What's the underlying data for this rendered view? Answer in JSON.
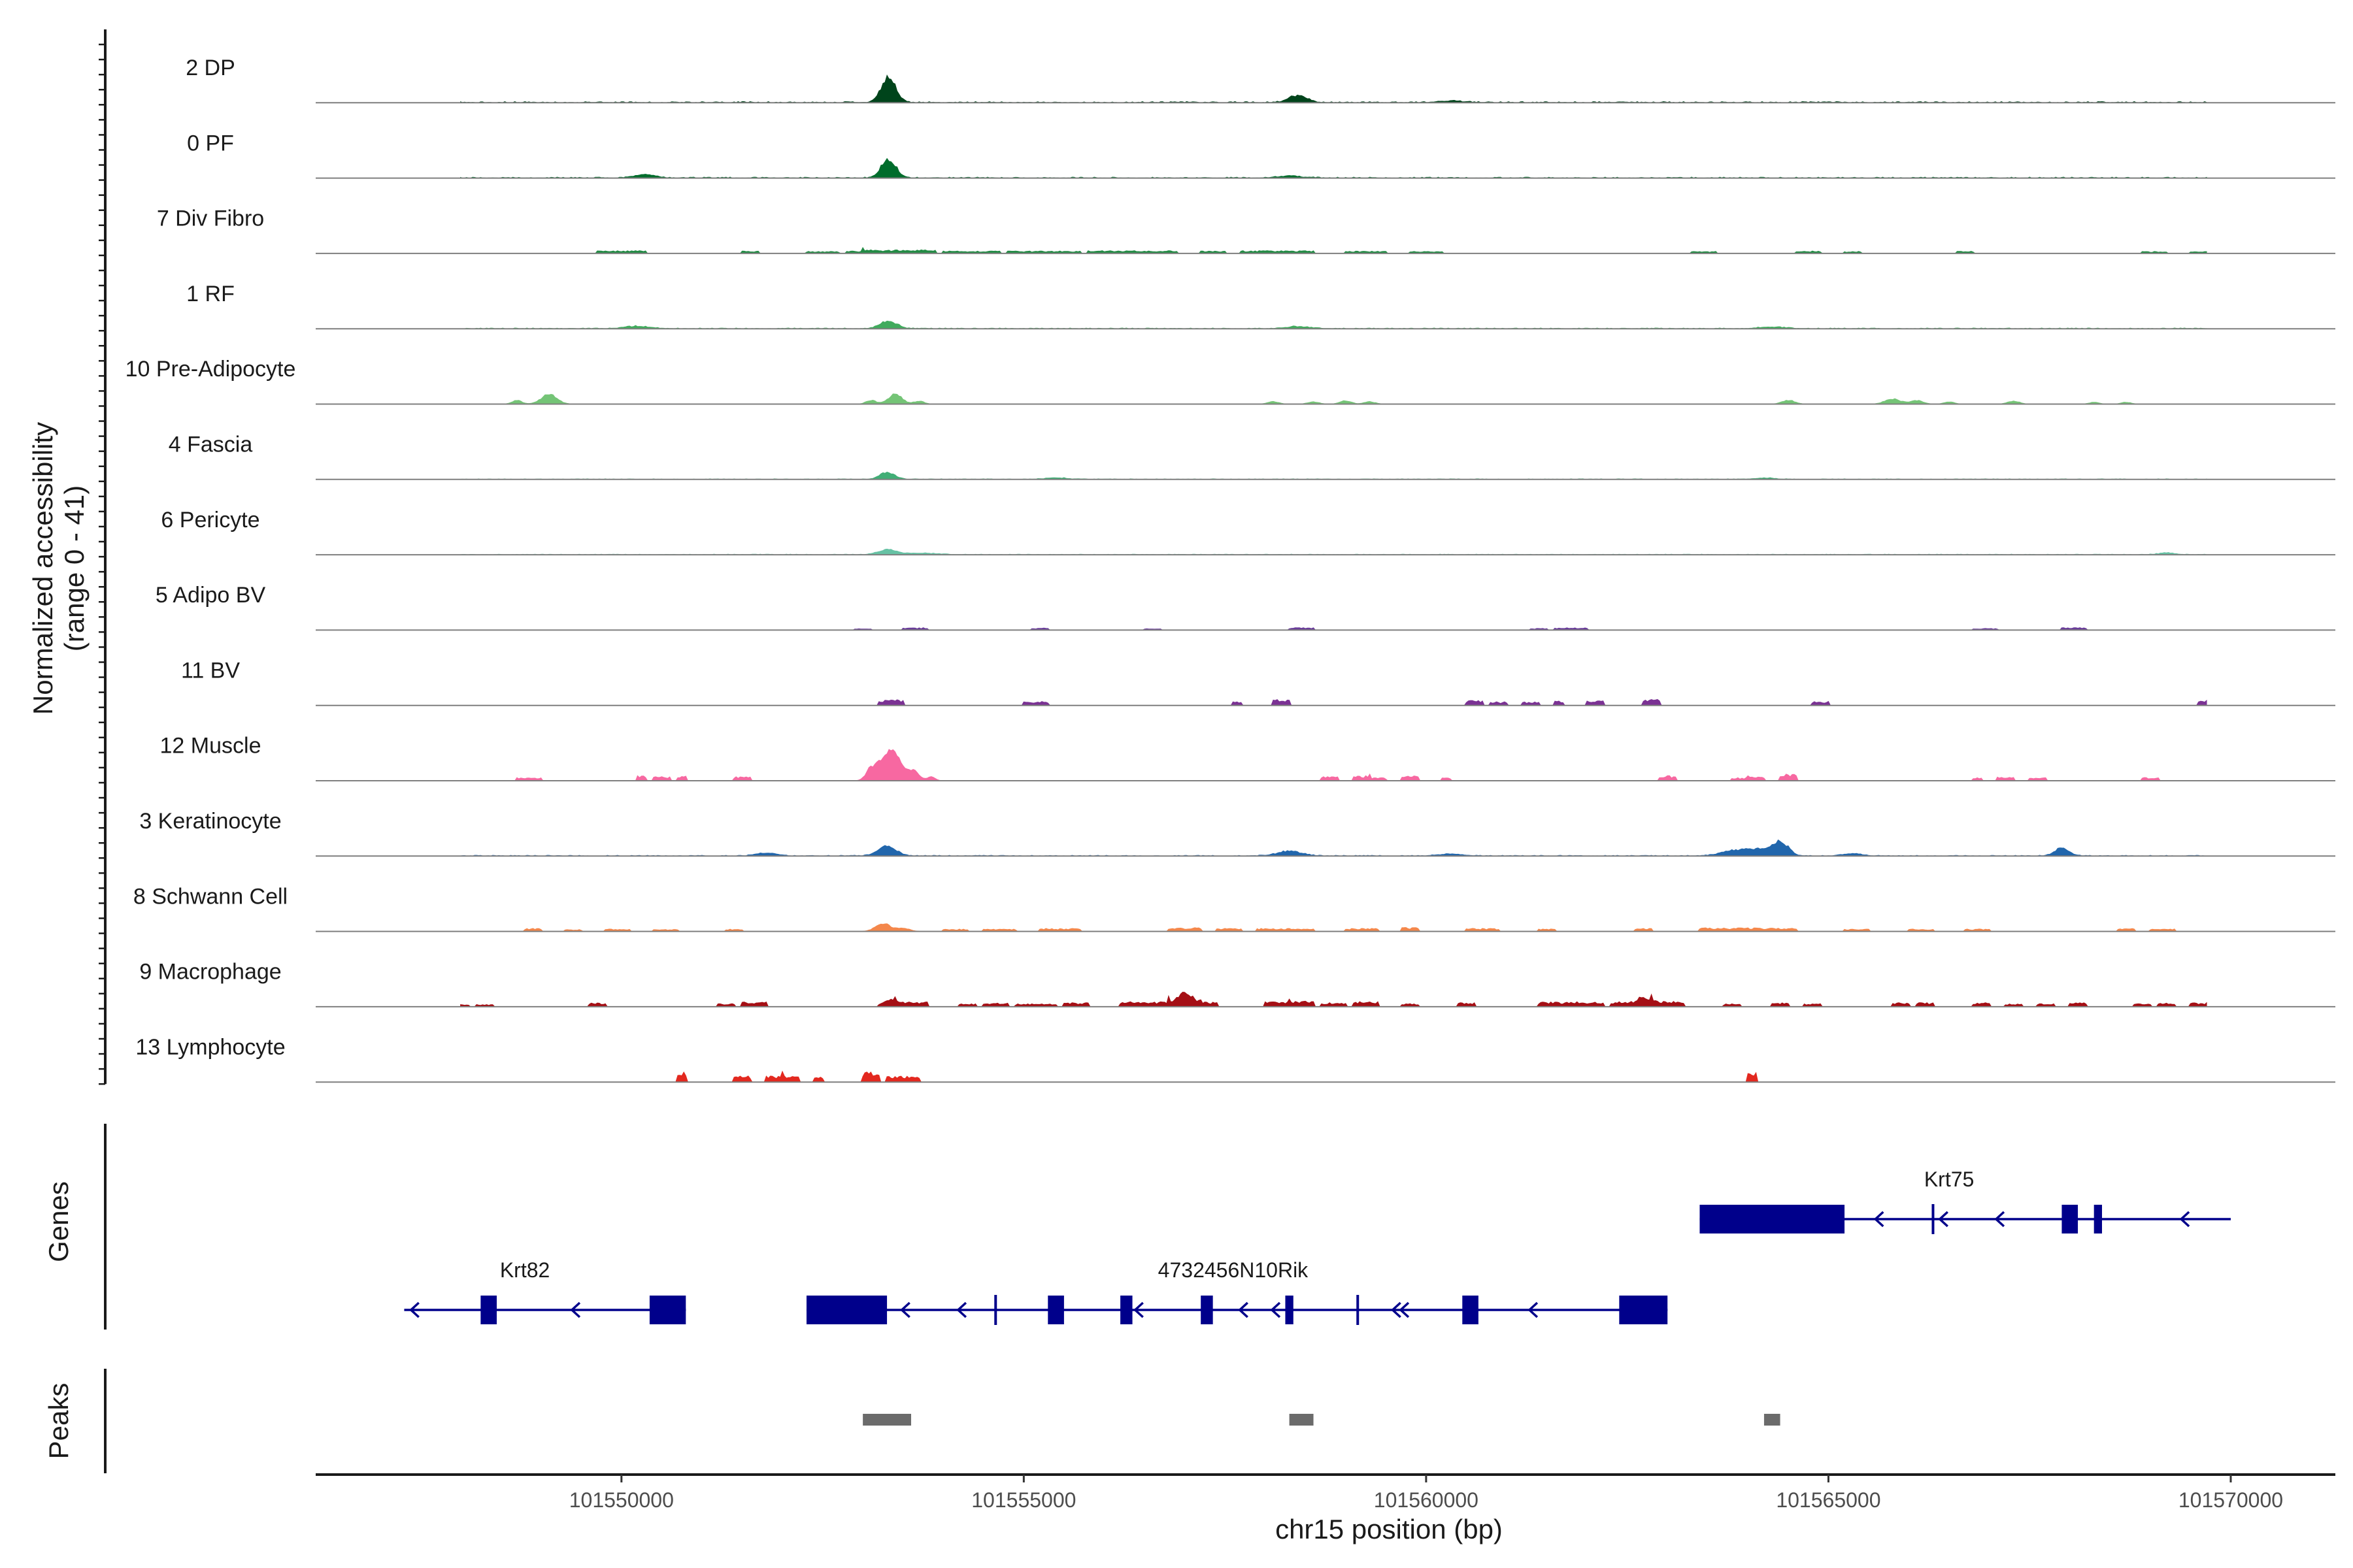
{
  "chart_data": {
    "type": "area",
    "title": "",
    "chromosome": "chr15",
    "xlabel": "chr15 position (bp)",
    "ylabel_line1": "Normalized accessibility",
    "ylabel_line2": "(range 0 - 41)",
    "xlim": [
      101546200,
      101571300
    ],
    "ylim": [
      0,
      41
    ],
    "x_ticks": [
      101550000,
      101555000,
      101560000,
      101565000,
      101570000
    ],
    "x_tick_labels": [
      "101550000",
      "101555000",
      "101560000",
      "101565000",
      "101570000"
    ],
    "genes_label": "Genes",
    "peaks_label": "Peaks",
    "series": [
      {
        "name": "2 DP",
        "color": "#00441b",
        "base": 0.6,
        "noise": 0.35,
        "peaks": [
          [
            101553320,
            16,
            90
          ],
          [
            101558400,
            4.5,
            110
          ],
          [
            101560300,
            1,
            150
          ]
        ]
      },
      {
        "name": "0 PF",
        "color": "#006d2c",
        "base": 0.5,
        "noise": 0.3,
        "peaks": [
          [
            101553320,
            12,
            90
          ],
          [
            101550300,
            2.2,
            120
          ],
          [
            101558300,
            1.2,
            150
          ]
        ]
      },
      {
        "name": "7 Div Fibro",
        "color": "#238b45",
        "base": 0,
        "noise": 0,
        "blocks": [
          [
            101549700,
            101550300,
            1.4
          ],
          [
            101551500,
            101551700,
            1.2
          ],
          [
            101552300,
            101552700,
            1.0
          ],
          [
            101552800,
            101553000,
            1.2
          ],
          [
            101553000,
            101553900,
            1.8
          ],
          [
            101554000,
            101554700,
            1.2
          ],
          [
            101554800,
            101555700,
            1.2
          ],
          [
            101555800,
            101556900,
            1.4
          ],
          [
            101557200,
            101557500,
            1.2
          ],
          [
            101557700,
            101558600,
            1.4
          ],
          [
            101559000,
            101559500,
            1.2
          ],
          [
            101559800,
            101560200,
            1.0
          ],
          [
            101563300,
            101563600,
            1.0
          ],
          [
            101564600,
            101564900,
            1.2
          ],
          [
            101565200,
            101565400,
            1.0
          ],
          [
            101566600,
            101566800,
            1.2
          ],
          [
            101568900,
            101569200,
            1.0
          ],
          [
            101569500,
            101569700,
            1.0
          ]
        ]
      },
      {
        "name": "1 RF",
        "color": "#41ab5d",
        "base": 0.4,
        "noise": 0.3,
        "peaks": [
          [
            101553320,
            5,
            100
          ],
          [
            101550200,
            1.5,
            150
          ],
          [
            101558400,
            1.2,
            150
          ],
          [
            101564300,
            1.0,
            150
          ]
        ]
      },
      {
        "name": "10 Pre-Adipocyte",
        "color": "#74c476",
        "base": 0,
        "noise": 0,
        "peaks": [
          [
            101549100,
            6,
            100
          ],
          [
            101548700,
            2.5,
            60
          ],
          [
            101553400,
            6,
            90
          ],
          [
            101553100,
            2.5,
            60
          ],
          [
            101553700,
            2,
            60
          ],
          [
            101558100,
            1.5,
            70
          ],
          [
            101558600,
            1.5,
            70
          ],
          [
            101559000,
            2.2,
            70
          ],
          [
            101559300,
            1.5,
            70
          ],
          [
            101564500,
            2.5,
            80
          ],
          [
            101565800,
            3.2,
            100
          ],
          [
            101566100,
            2.2,
            80
          ],
          [
            101566500,
            1.5,
            60
          ],
          [
            101567300,
            2,
            70
          ],
          [
            101568300,
            1.2,
            60
          ],
          [
            101568700,
            1.2,
            60
          ]
        ]
      },
      {
        "name": "4 Fascia",
        "color": "#41ae76",
        "base": 0.3,
        "noise": 0.2,
        "peaks": [
          [
            101553300,
            4.5,
            90
          ],
          [
            101555400,
            1.0,
            120
          ],
          [
            101564200,
            0.8,
            120
          ]
        ]
      },
      {
        "name": "6 Pericyte",
        "color": "#66c2a4",
        "base": 0.3,
        "noise": 0.2,
        "peaks": [
          [
            101553300,
            3,
            110
          ],
          [
            101553700,
            1,
            200
          ],
          [
            101569200,
            1.0,
            100
          ]
        ]
      },
      {
        "name": "5 Adipo BV",
        "color": "#6a3d9a",
        "base": 0,
        "noise": 0,
        "blocks": [
          [
            101552900,
            101553100,
            0.8
          ],
          [
            101553500,
            101553800,
            1.2
          ],
          [
            101555100,
            101555300,
            1.0
          ],
          [
            101556500,
            101556700,
            0.8
          ],
          [
            101558300,
            101558600,
            1.2
          ],
          [
            101561300,
            101561500,
            0.8
          ],
          [
            101561600,
            101562000,
            1.2
          ],
          [
            101566800,
            101567100,
            0.8
          ],
          [
            101567900,
            101568200,
            1.2
          ]
        ]
      },
      {
        "name": "11 BV",
        "color": "#7b3294",
        "base": 0,
        "noise": 0,
        "blocks": [
          [
            101553200,
            101553500,
            2.8
          ],
          [
            101555000,
            101555300,
            2.0
          ],
          [
            101557600,
            101557700,
            1.8
          ],
          [
            101558100,
            101558300,
            3.0
          ],
          [
            101560500,
            101560700,
            2.5
          ],
          [
            101560800,
            101561000,
            1.8
          ],
          [
            101561200,
            101561400,
            1.8
          ],
          [
            101561600,
            101561700,
            2.5
          ],
          [
            101562000,
            101562200,
            2.5
          ],
          [
            101562700,
            101562900,
            3.0
          ],
          [
            101564800,
            101565000,
            2.0
          ],
          [
            101569600,
            101569700,
            2.8
          ]
        ]
      },
      {
        "name": "12 Muscle",
        "color": "#f768a1",
        "base": 0,
        "noise": 0,
        "peaks": [
          [
            101553350,
            20,
            130
          ],
          [
            101553100,
            6,
            60
          ],
          [
            101553650,
            5,
            60
          ],
          [
            101553850,
            2.5,
            50
          ]
        ],
        "blocks": [
          [
            101548700,
            101549000,
            1.5
          ],
          [
            101550200,
            101550300,
            2.5
          ],
          [
            101550400,
            101550600,
            2.0
          ],
          [
            101550700,
            101550800,
            2.5
          ],
          [
            101551400,
            101551600,
            2.0
          ],
          [
            101558700,
            101558900,
            2.0
          ],
          [
            101559100,
            101559300,
            2.5
          ],
          [
            101559300,
            101559500,
            1.5
          ],
          [
            101559700,
            101559900,
            2.5
          ],
          [
            101560200,
            101560300,
            1.5
          ],
          [
            101562900,
            101563100,
            2.5
          ],
          [
            101563800,
            101564000,
            1.5
          ],
          [
            101564000,
            101564200,
            2.0
          ],
          [
            101564400,
            101564600,
            3.5
          ],
          [
            101566800,
            101566900,
            1.5
          ],
          [
            101567100,
            101567300,
            2.0
          ],
          [
            101567500,
            101567700,
            1.5
          ],
          [
            101568900,
            101569100,
            1.8
          ]
        ]
      },
      {
        "name": "3 Keratinocyte",
        "color": "#2166ac",
        "base": 0.4,
        "noise": 0.3,
        "peaks": [
          [
            101553300,
            6,
            110
          ],
          [
            101551800,
            2,
            120
          ],
          [
            101558300,
            3,
            150
          ],
          [
            101563800,
            3,
            150
          ],
          [
            101564100,
            4,
            150
          ],
          [
            101564400,
            9,
            100
          ],
          [
            101567900,
            5,
            90
          ],
          [
            101565300,
            1.2,
            120
          ],
          [
            101560300,
            1.2,
            150
          ]
        ]
      },
      {
        "name": "8 Schwann Cell",
        "color": "#f4874b",
        "base": 0,
        "noise": 0,
        "peaks": [
          [
            101553250,
            5,
            90
          ],
          [
            101553500,
            2,
            80
          ]
        ],
        "blocks": [
          [
            101548800,
            101549000,
            1.5
          ],
          [
            101549300,
            101549500,
            1.0
          ],
          [
            101549800,
            101550100,
            1.2
          ],
          [
            101550400,
            101550700,
            1.0
          ],
          [
            101551300,
            101551500,
            1.2
          ],
          [
            101554000,
            101554300,
            1.2
          ],
          [
            101554500,
            101554900,
            1.2
          ],
          [
            101555200,
            101555700,
            1.5
          ],
          [
            101556800,
            101557200,
            2.0
          ],
          [
            101557400,
            101557700,
            1.5
          ],
          [
            101557900,
            101558600,
            1.5
          ],
          [
            101559000,
            101559400,
            1.5
          ],
          [
            101559700,
            101559900,
            2.0
          ],
          [
            101560500,
            101560900,
            1.5
          ],
          [
            101561400,
            101561600,
            1.2
          ],
          [
            101562600,
            101562800,
            1.5
          ],
          [
            101563400,
            101564600,
            1.8
          ],
          [
            101565200,
            101565500,
            1.2
          ],
          [
            101566000,
            101566300,
            1.2
          ],
          [
            101566700,
            101567000,
            1.2
          ],
          [
            101568600,
            101568800,
            1.5
          ],
          [
            101569000,
            101569300,
            1.2
          ]
        ]
      },
      {
        "name": "9 Macrophage",
        "color": "#a50f15",
        "base": 0,
        "noise": 0,
        "blocks": [
          [
            101547600,
            101547800,
            2.0
          ],
          [
            101547900,
            101548100,
            1.2
          ],
          [
            101548200,
            101548400,
            1.2
          ],
          [
            101549600,
            101549800,
            2.0
          ],
          [
            101551200,
            101551400,
            1.5
          ],
          [
            101551500,
            101551800,
            2.5
          ],
          [
            101553200,
            101553400,
            1.5
          ],
          [
            101553400,
            101553800,
            2.5
          ],
          [
            101554200,
            101554400,
            1.5
          ],
          [
            101554500,
            101554800,
            2.0
          ],
          [
            101554900,
            101555400,
            1.5
          ],
          [
            101555500,
            101555800,
            2.0
          ],
          [
            101556200,
            101556800,
            2.5
          ],
          [
            101556800,
            101557200,
            3.0
          ],
          [
            101557200,
            101557400,
            2.5
          ],
          [
            101558000,
            101558300,
            2.5
          ],
          [
            101558300,
            101558600,
            3.0
          ],
          [
            101558700,
            101559000,
            2.0
          ],
          [
            101559100,
            101559400,
            2.5
          ],
          [
            101559700,
            101559900,
            1.5
          ],
          [
            101560400,
            101560600,
            2.0
          ],
          [
            101561400,
            101562200,
            2.5
          ],
          [
            101562300,
            101562800,
            2.5
          ],
          [
            101562800,
            101563200,
            3.0
          ],
          [
            101563700,
            101563900,
            1.5
          ],
          [
            101564300,
            101564500,
            2.0
          ],
          [
            101564700,
            101564900,
            1.5
          ],
          [
            101565800,
            101566000,
            2.0
          ],
          [
            101566100,
            101566300,
            2.0
          ],
          [
            101566800,
            101567000,
            2.0
          ],
          [
            101567200,
            101567400,
            1.5
          ],
          [
            101567600,
            101567800,
            1.5
          ],
          [
            101568000,
            101568200,
            2.0
          ],
          [
            101568800,
            101569000,
            1.5
          ],
          [
            101569100,
            101569300,
            1.8
          ],
          [
            101569500,
            101569800,
            2.0
          ]
        ],
        "peaks": [
          [
            101557000,
            6,
            80
          ],
          [
            101553350,
            3,
            70
          ],
          [
            101562700,
            3.5,
            70
          ]
        ]
      },
      {
        "name": "13 Lymphocyte",
        "color": "#e3281f",
        "base": 0,
        "noise": 0,
        "blocks": [
          [
            101550700,
            101550800,
            5.0
          ],
          [
            101551400,
            101551600,
            3.0
          ],
          [
            101551800,
            101552000,
            3.0
          ],
          [
            101552000,
            101552200,
            3.0
          ],
          [
            101552400,
            101552500,
            3.0
          ],
          [
            101553000,
            101553200,
            5.0
          ],
          [
            101553300,
            101553700,
            3.0
          ],
          [
            101564000,
            101564100,
            5.0
          ]
        ]
      }
    ],
    "genes": [
      {
        "name": "Krt82",
        "start": 101547300,
        "end": 101550800,
        "row": 2,
        "label_pos": 101548800,
        "introns_arrows": [
          101547400,
          101549400
        ],
        "exons": [
          [
            101548250,
            101548450
          ],
          [
            101550350,
            101550800
          ]
        ]
      },
      {
        "name": "4732456N10Rik",
        "start": 101552300,
        "end": 101563000,
        "row": 2,
        "label_pos": 101557600,
        "introns_arrows": [
          101553500,
          101555400,
          101557700,
          101559700
        ],
        "exons": [
          [
            101552300,
            101553300
          ],
          [
            101554650,
            101554700
          ],
          [
            101555300,
            101555500
          ],
          [
            101556200,
            101556350
          ],
          [
            101557200,
            101557350
          ],
          [
            101558250,
            101558350
          ],
          [
            101559150,
            101559200
          ],
          [
            101560450,
            101560650
          ],
          [
            101562400,
            101563000
          ]
        ],
        "arrows": [
          101554200,
          101556400,
          101558100,
          101559600,
          101561300
        ]
      },
      {
        "name": "Krt75",
        "start": 101563400,
        "end": 101570000,
        "row": 1,
        "label_pos": 101566500,
        "exons": [
          [
            101563400,
            101565200
          ],
          [
            101566300,
            101566330
          ],
          [
            101567900,
            101568100
          ],
          [
            101568300,
            101568400
          ]
        ],
        "arrows": [
          101565600,
          101566400,
          101567100,
          101569400
        ]
      }
    ],
    "peaks_regions": [
      [
        101553000,
        101553600
      ],
      [
        101558300,
        101558600
      ],
      [
        101564200,
        101564400
      ]
    ],
    "peak_color": "#6b6b6b",
    "gene_color": "#00008b"
  }
}
